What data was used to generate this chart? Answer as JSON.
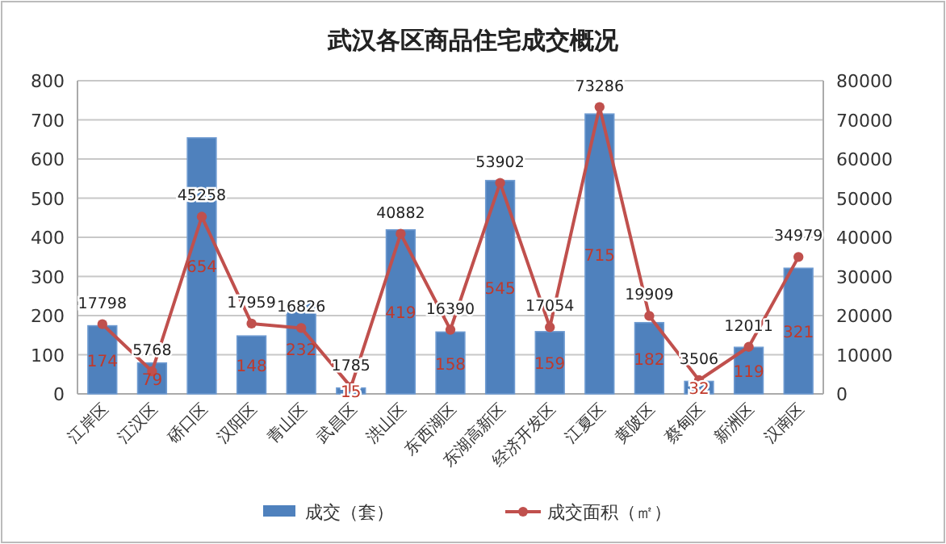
{
  "chart_data": {
    "type": "bar",
    "title": "武汉各区商品住宅成交概况",
    "categories": [
      "江岸区",
      "江汉区",
      "硚口区",
      "汉阳区",
      "青山区",
      "武昌区",
      "洪山区",
      "东西湖区",
      "东湖高新区",
      "经济开发区",
      "江夏区",
      "黄陂区",
      "蔡甸区",
      "新洲区",
      "汉南区"
    ],
    "series": [
      {
        "name": "成交（套）",
        "color": "#4f81bd",
        "values": [
          174,
          79,
          654,
          148,
          232,
          15,
          419,
          158,
          545,
          159,
          715,
          182,
          32,
          119,
          321
        ]
      },
      {
        "name": "成交面积（㎡）",
        "type": "line",
        "axis": "y2",
        "color": "#c0504d",
        "values": [
          17798,
          5768,
          45258,
          17959,
          16826,
          1785,
          40882,
          16390,
          53902,
          17054,
          73286,
          19909,
          3506,
          12011,
          34979
        ]
      }
    ],
    "ylim": [
      0,
      800
    ],
    "yticks": [
      0,
      100,
      200,
      300,
      400,
      500,
      600,
      700,
      800
    ],
    "y2lim": [
      0,
      80000
    ],
    "y2ticks": [
      0,
      10000,
      20000,
      30000,
      40000,
      50000,
      60000,
      70000,
      80000
    ],
    "grid": "y",
    "legend": "bottom",
    "marker": "circle",
    "data_labels": true
  }
}
